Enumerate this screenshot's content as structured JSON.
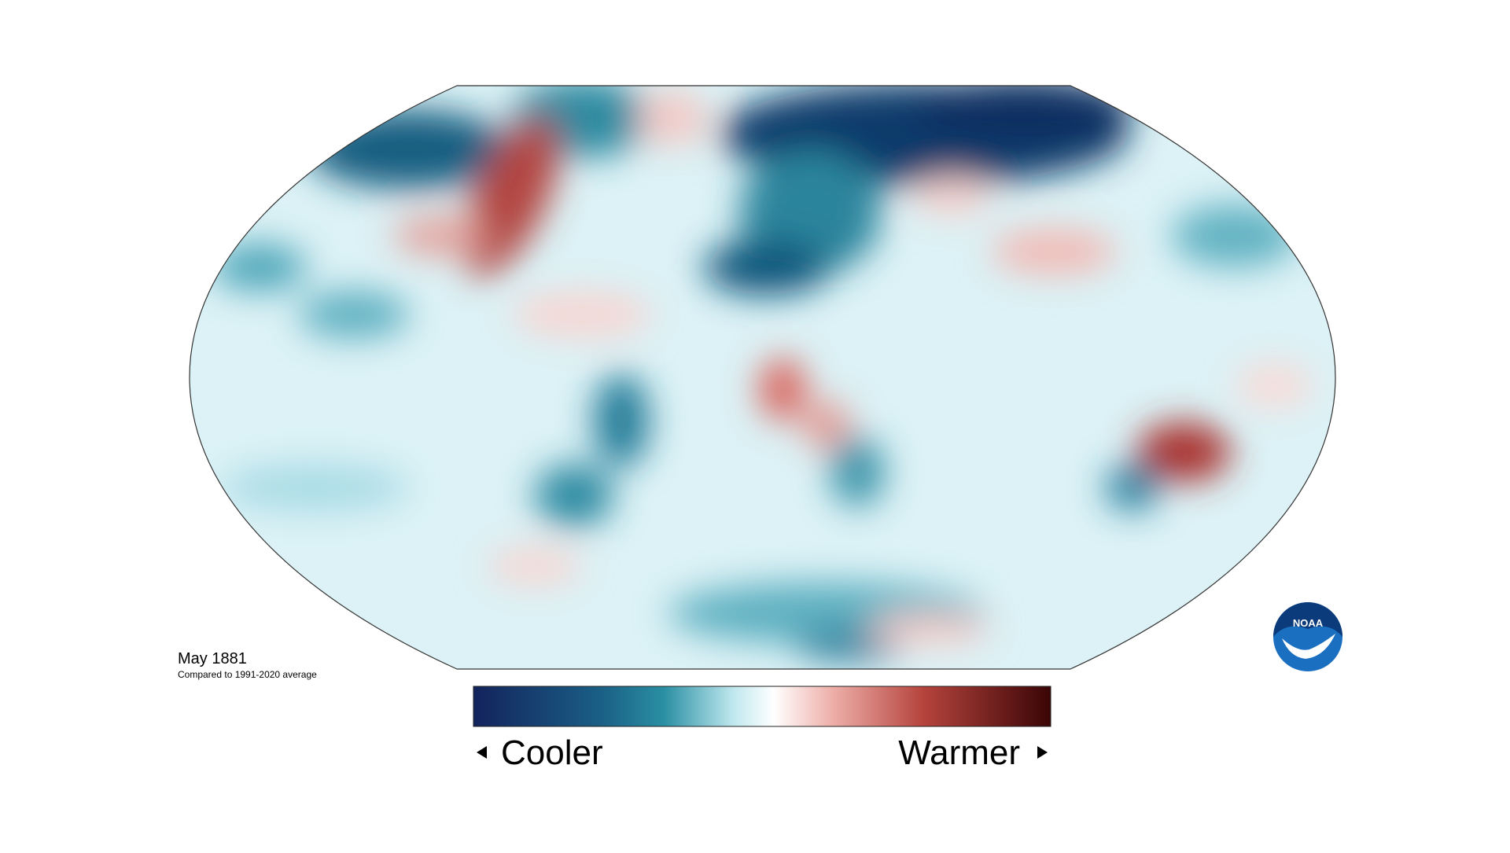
{
  "map": {
    "title": "May 1881",
    "subtitle": "Compared to 1991-2020 average"
  },
  "legend": {
    "low_label": "Cooler",
    "high_label": "Warmer"
  },
  "logo": {
    "text": "NOAA"
  }
}
